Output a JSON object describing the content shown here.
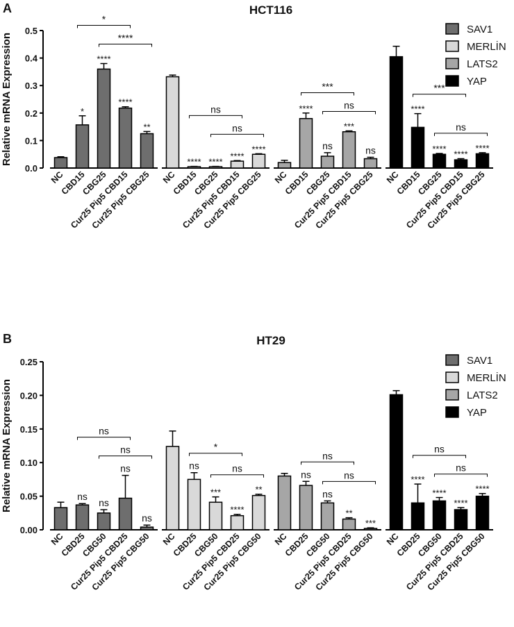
{
  "chart_data": [
    {
      "type": "bar",
      "panel_label": "A",
      "title": "HCT116",
      "y_label": "Relative mRNA Expression",
      "categories": [
        "NC",
        "CBD15",
        "CBG25",
        "Cur25 Pip5 CBD15",
        "Cur25 Pip5 CBG25"
      ],
      "ylim": [
        0,
        0.5
      ],
      "yticks": [
        {
          "value": 0,
          "label": "0.0"
        },
        0.1,
        0.2,
        0.3,
        0.4,
        0.5
      ],
      "legend": "top-right",
      "series": [
        {
          "name": "SAV1",
          "color": "#6e6e6e",
          "values": [
            0.038,
            0.157,
            0.36,
            0.218,
            0.125
          ],
          "errors": [
            0.003,
            0.033,
            0.02,
            0.005,
            0.008
          ],
          "annotations": [
            null,
            "*",
            "****",
            "****",
            "**"
          ],
          "brackets": [
            {
              "pair": [
                1,
                3
              ],
              "label": "*"
            },
            {
              "pair": [
                2,
                4
              ],
              "label": "****"
            }
          ]
        },
        {
          "name": "MERLİN",
          "color": "#d9d9d9",
          "values": [
            0.332,
            0.005,
            0.005,
            0.025,
            0.05
          ],
          "errors": [
            0.006,
            0.001,
            0.001,
            0.002,
            0.002
          ],
          "annotations": [
            null,
            "****",
            "****",
            "****",
            "****"
          ],
          "brackets": [
            {
              "pair": [
                1,
                3
              ],
              "label": "ns"
            },
            {
              "pair": [
                2,
                4
              ],
              "label": "ns"
            }
          ]
        },
        {
          "name": "LATS2",
          "color": "#a6a6a6",
          "values": [
            0.02,
            0.18,
            0.043,
            0.132,
            0.034
          ],
          "errors": [
            0.008,
            0.02,
            0.013,
            0.003,
            0.005
          ],
          "annotations": [
            null,
            "****",
            "ns",
            "***",
            "ns"
          ],
          "brackets": [
            {
              "pair": [
                1,
                3
              ],
              "label": "***"
            },
            {
              "pair": [
                2,
                4
              ],
              "label": "ns"
            }
          ]
        },
        {
          "name": "YAP",
          "color": "#000000",
          "values": [
            0.405,
            0.148,
            0.05,
            0.03,
            0.052
          ],
          "errors": [
            0.038,
            0.05,
            0.003,
            0.004,
            0.004
          ],
          "annotations": [
            null,
            "****",
            "****",
            "****",
            "****"
          ],
          "brackets": [
            {
              "pair": [
                1,
                3
              ],
              "label": "***"
            },
            {
              "pair": [
                2,
                4
              ],
              "label": "ns"
            }
          ]
        }
      ]
    },
    {
      "type": "bar",
      "panel_label": "B",
      "title": "HT29",
      "y_label": "Relative mRNA Expression",
      "categories": [
        "NC",
        "CBD25",
        "CBG50",
        "Cur25 Pip5 CBD25",
        "Cur25 Pip5 CBG50"
      ],
      "ylim": [
        0,
        0.25
      ],
      "yticks": [
        {
          "value": 0,
          "label": "0.00"
        },
        0.05,
        {
          "value": 0.1,
          "label": "0.10"
        },
        0.15,
        {
          "value": 0.2,
          "label": "0.20"
        },
        0.25
      ],
      "legend": "top-right",
      "series": [
        {
          "name": "SAV1",
          "color": "#6e6e6e",
          "values": [
            0.033,
            0.037,
            0.025,
            0.047,
            0.004
          ],
          "errors": [
            0.008,
            0.002,
            0.005,
            0.034,
            0.003
          ],
          "annotations": [
            null,
            "ns",
            "ns",
            "ns",
            "ns"
          ],
          "brackets": [
            {
              "pair": [
                1,
                3
              ],
              "label": "ns"
            },
            {
              "pair": [
                2,
                4
              ],
              "label": "ns"
            }
          ]
        },
        {
          "name": "MERLİN",
          "color": "#d9d9d9",
          "values": [
            0.124,
            0.075,
            0.041,
            0.021,
            0.051
          ],
          "errors": [
            0.023,
            0.01,
            0.008,
            0.002,
            0.002
          ],
          "annotations": [
            null,
            "ns",
            "***",
            "****",
            "**"
          ],
          "brackets": [
            {
              "pair": [
                1,
                3
              ],
              "label": "*"
            },
            {
              "pair": [
                2,
                4
              ],
              "label": "ns"
            }
          ]
        },
        {
          "name": "LATS2",
          "color": "#a6a6a6",
          "values": [
            0.08,
            0.066,
            0.04,
            0.016,
            0.002
          ],
          "errors": [
            0.004,
            0.006,
            0.003,
            0.002,
            0.001
          ],
          "annotations": [
            null,
            "ns",
            "ns",
            "**",
            "***"
          ],
          "brackets": [
            {
              "pair": [
                1,
                3
              ],
              "label": "ns"
            },
            {
              "pair": [
                2,
                4
              ],
              "label": "ns"
            }
          ]
        },
        {
          "name": "YAP",
          "color": "#000000",
          "values": [
            0.201,
            0.04,
            0.043,
            0.03,
            0.05
          ],
          "errors": [
            0.006,
            0.028,
            0.005,
            0.003,
            0.004
          ],
          "annotations": [
            null,
            "****",
            "****",
            "****",
            "****"
          ],
          "brackets": [
            {
              "pair": [
                1,
                3
              ],
              "label": "ns"
            },
            {
              "pair": [
                2,
                4
              ],
              "label": "ns"
            }
          ]
        }
      ]
    }
  ]
}
